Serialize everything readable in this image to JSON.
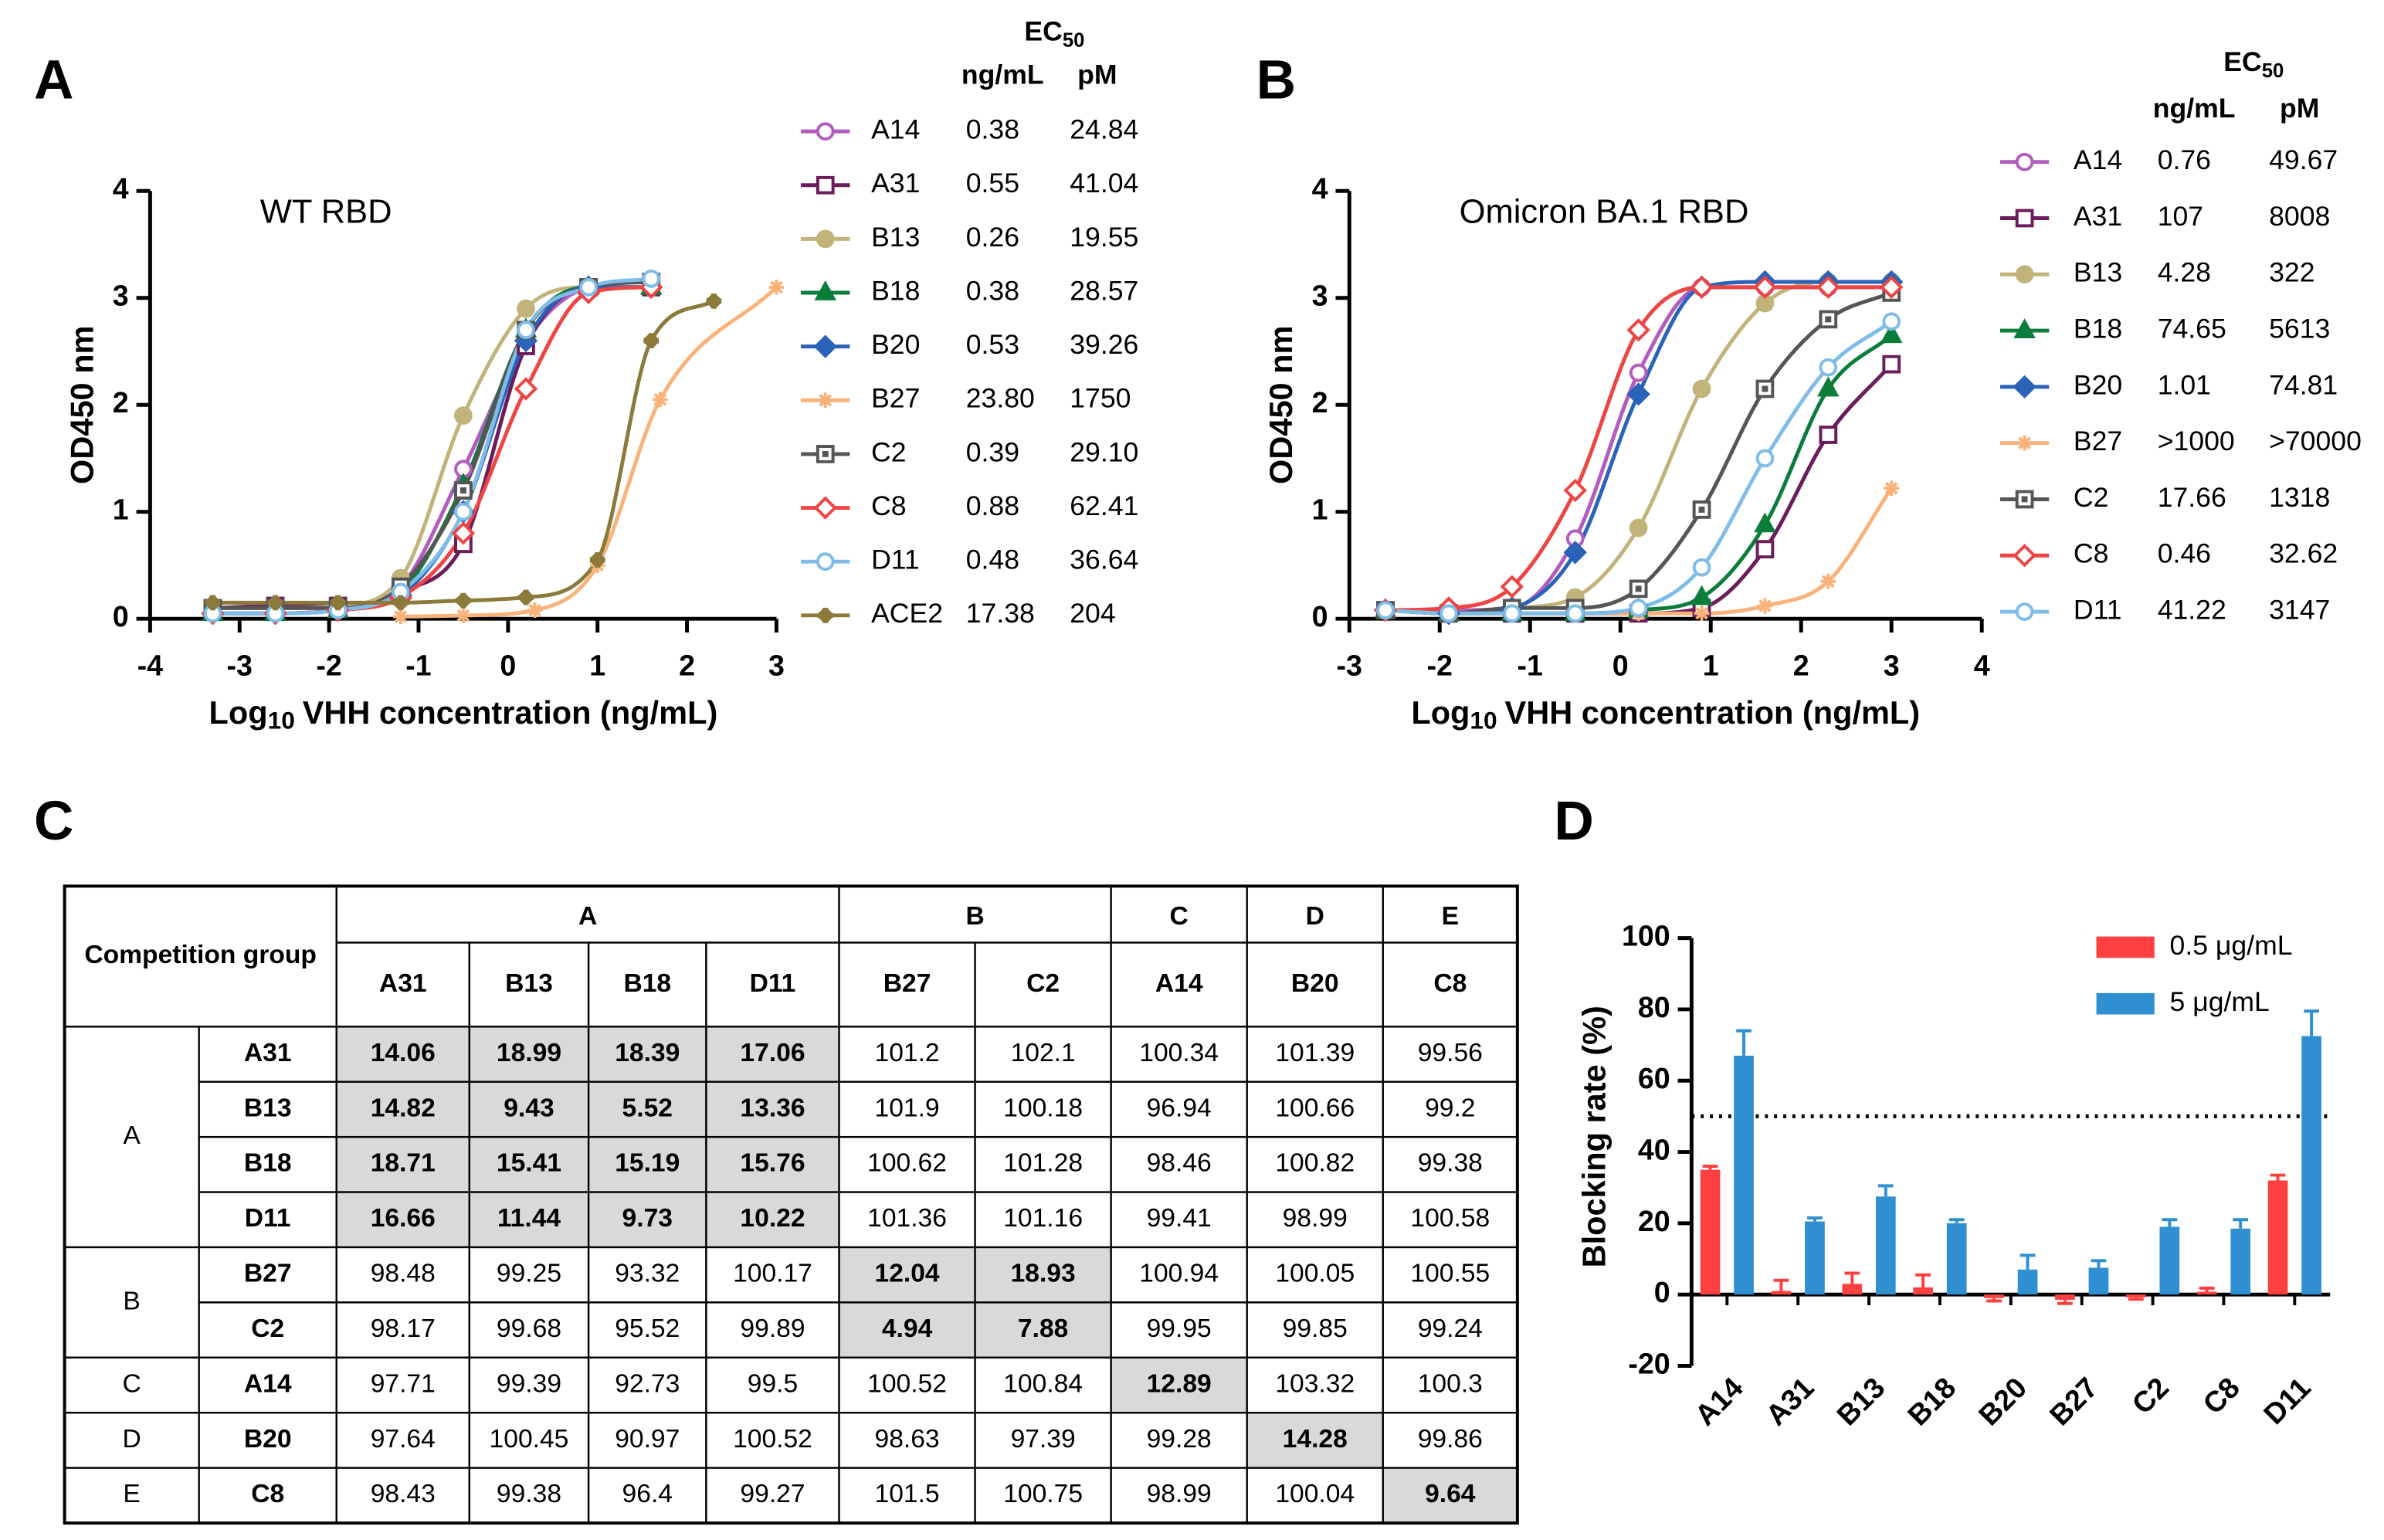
{
  "chart_data": [
    {
      "type": "line",
      "panel_label": "A",
      "title": "WT RBD",
      "ylabel": "OD450 nm",
      "xlabel": {
        "pre": "Log",
        "sub": "10",
        "post": "VHH concentration (ng/mL)"
      },
      "legend_header": {
        "ec": "EC",
        "sub": "50",
        "col1": "ng/mL",
        "col2": "pM"
      },
      "xlim": [
        -4,
        3
      ],
      "ylim": [
        0,
        4
      ],
      "xticks": [
        -4,
        -3,
        -2,
        -1,
        0,
        1,
        2,
        3
      ],
      "yticks": [
        0,
        1,
        2,
        3,
        4
      ],
      "series": [
        {
          "name": "A14",
          "color": "#b35cc0",
          "marker": "circle-open",
          "ec50_ngml": "0.38",
          "ec50_pm": "24.84",
          "x": [
            -3.3,
            -2.6,
            -1.9,
            -1.2,
            -0.5,
            0.2,
            0.9,
            1.6
          ],
          "values": [
            0.1,
            0.1,
            0.1,
            0.3,
            1.4,
            2.6,
            3.1,
            3.15
          ]
        },
        {
          "name": "A31",
          "color": "#6b1d5b",
          "marker": "square-open",
          "ec50_ngml": "0.55",
          "ec50_pm": "41.04",
          "x": [
            -3.3,
            -2.6,
            -1.9,
            -1.2,
            -0.5,
            0.2,
            0.9,
            1.6
          ],
          "values": [
            0.1,
            0.12,
            0.12,
            0.25,
            0.7,
            2.55,
            3.1,
            3.1
          ]
        },
        {
          "name": "B13",
          "color": "#c2b37a",
          "marker": "circle",
          "ec50_ngml": "0.26",
          "ec50_pm": "19.55",
          "x": [
            -3.3,
            -2.6,
            -1.9,
            -1.2,
            -0.5,
            0.2,
            0.9,
            1.6
          ],
          "values": [
            0.1,
            0.1,
            0.12,
            0.38,
            1.9,
            2.9,
            3.1,
            3.1
          ]
        },
        {
          "name": "B18",
          "color": "#0a7d3a",
          "marker": "triangle",
          "ec50_ngml": "0.38",
          "ec50_pm": "28.57",
          "x": [
            -3.3,
            -2.6,
            -1.9,
            -1.2,
            -0.5,
            0.2,
            0.9,
            1.6
          ],
          "values": [
            0.05,
            0.05,
            0.08,
            0.25,
            1.25,
            2.7,
            3.1,
            3.1
          ]
        },
        {
          "name": "B20",
          "color": "#2a63b8",
          "marker": "diamond",
          "ec50_ngml": "0.53",
          "ec50_pm": "39.26",
          "x": [
            -3.3,
            -2.6,
            -1.9,
            -1.2,
            -0.5,
            0.2,
            0.9,
            1.6
          ],
          "values": [
            0.05,
            0.05,
            0.08,
            0.22,
            1.0,
            2.6,
            3.1,
            3.1
          ]
        },
        {
          "name": "B27",
          "color": "#f9b27a",
          "marker": "star",
          "ec50_ngml": "23.80",
          "ec50_pm": "1750",
          "x": [
            -1.2,
            -0.5,
            0.3,
            1.0,
            1.7,
            3.0
          ],
          "values": [
            0.02,
            0.03,
            0.08,
            0.5,
            2.05,
            3.1
          ]
        },
        {
          "name": "C2",
          "color": "#555555",
          "marker": "square-dot",
          "ec50_ngml": "0.39",
          "ec50_pm": "29.10",
          "x": [
            -3.3,
            -2.6,
            -1.9,
            -1.2,
            -0.5,
            0.2,
            0.9,
            1.6
          ],
          "values": [
            0.1,
            0.1,
            0.1,
            0.3,
            1.2,
            2.7,
            3.1,
            3.15
          ]
        },
        {
          "name": "C8",
          "color": "#ee4444",
          "marker": "diamond-open",
          "ec50_ngml": "0.88",
          "ec50_pm": "62.41",
          "x": [
            -3.3,
            -2.6,
            -1.9,
            -1.2,
            -0.5,
            0.2,
            0.9,
            1.6
          ],
          "values": [
            0.05,
            0.05,
            0.08,
            0.2,
            0.8,
            2.15,
            3.05,
            3.1
          ]
        },
        {
          "name": "D11",
          "color": "#7fbde8",
          "marker": "circle-open",
          "ec50_ngml": "0.48",
          "ec50_pm": "36.64",
          "x": [
            -3.3,
            -2.6,
            -1.9,
            -1.2,
            -0.5,
            0.2,
            0.9,
            1.6
          ],
          "values": [
            0.05,
            0.05,
            0.08,
            0.25,
            1.0,
            2.7,
            3.1,
            3.18
          ]
        },
        {
          "name": "ACE2",
          "color": "#8b7a3a",
          "marker": "plus",
          "ec50_ngml": "17.38",
          "ec50_pm": "204",
          "x": [
            -3.3,
            -2.6,
            -1.9,
            -1.2,
            -0.5,
            0.2,
            1.0,
            1.6,
            2.3
          ],
          "values": [
            0.15,
            0.15,
            0.15,
            0.15,
            0.17,
            0.2,
            0.55,
            2.6,
            2.97
          ]
        }
      ]
    },
    {
      "type": "line",
      "panel_label": "B",
      "title": "Omicron BA.1 RBD",
      "ylabel": "OD450 nm",
      "xlabel": {
        "pre": "Log",
        "sub": "10",
        "post": "VHH concentration (ng/mL)"
      },
      "legend_header": {
        "ec": "EC",
        "sub": "50",
        "col1": "ng/mL",
        "col2": "pM"
      },
      "xlim": [
        -3,
        4
      ],
      "ylim": [
        0,
        4
      ],
      "xticks": [
        -3,
        -2,
        -1,
        0,
        1,
        2,
        3,
        4
      ],
      "yticks": [
        0,
        1,
        2,
        3,
        4
      ],
      "series": [
        {
          "name": "A14",
          "color": "#b35cc0",
          "marker": "circle-open",
          "ec50_ngml": "0.76",
          "ec50_pm": "49.67",
          "x": [
            -2.6,
            -1.9,
            -1.2,
            -0.5,
            0.2,
            0.9,
            1.6,
            2.3,
            3.0
          ],
          "values": [
            0.08,
            0.08,
            0.1,
            0.75,
            2.3,
            3.1,
            3.1,
            3.1,
            3.1
          ]
        },
        {
          "name": "A31",
          "color": "#6b1d5b",
          "marker": "square-open",
          "ec50_ngml": "107",
          "ec50_pm": "8008",
          "x": [
            -2.6,
            -1.9,
            -1.2,
            -0.5,
            0.2,
            0.9,
            1.6,
            2.3,
            3.0
          ],
          "values": [
            0.08,
            0.05,
            0.05,
            0.05,
            0.05,
            0.1,
            0.65,
            1.72,
            2.38
          ]
        },
        {
          "name": "B13",
          "color": "#c2b37a",
          "marker": "circle",
          "ec50_ngml": "4.28",
          "ec50_pm": "322",
          "x": [
            -2.6,
            -1.9,
            -1.2,
            -0.5,
            0.2,
            0.9,
            1.6,
            2.3,
            3.0
          ],
          "values": [
            0.08,
            0.05,
            0.1,
            0.2,
            0.85,
            2.15,
            2.95,
            3.15,
            3.15
          ]
        },
        {
          "name": "B18",
          "color": "#0a7d3a",
          "marker": "triangle",
          "ec50_ngml": "74.65",
          "ec50_pm": "5613",
          "x": [
            -2.6,
            -1.9,
            -1.2,
            -0.5,
            0.2,
            0.9,
            1.6,
            2.3,
            3.0
          ],
          "values": [
            0.08,
            0.05,
            0.05,
            0.05,
            0.08,
            0.2,
            0.88,
            2.15,
            2.65
          ]
        },
        {
          "name": "B20",
          "color": "#2a63b8",
          "marker": "diamond",
          "ec50_ngml": "1.01",
          "ec50_pm": "74.81",
          "x": [
            -2.6,
            -1.9,
            -1.2,
            -0.5,
            0.2,
            0.9,
            1.6,
            2.3,
            3.0
          ],
          "values": [
            0.08,
            0.05,
            0.1,
            0.62,
            2.1,
            3.1,
            3.15,
            3.15,
            3.15
          ]
        },
        {
          "name": "B27",
          "color": "#f9b27a",
          "marker": "star",
          "ec50_ngml": ">1000",
          "ec50_pm": ">70000",
          "x": [
            -2.6,
            -1.9,
            -1.2,
            -0.5,
            0.2,
            0.9,
            1.6,
            2.3,
            3.0
          ],
          "values": [
            0.08,
            0.05,
            0.05,
            0.05,
            0.05,
            0.05,
            0.12,
            0.35,
            1.22
          ]
        },
        {
          "name": "C2",
          "color": "#555555",
          "marker": "square-dot",
          "ec50_ngml": "17.66",
          "ec50_pm": "1318",
          "x": [
            -2.6,
            -1.9,
            -1.2,
            -0.5,
            0.2,
            0.9,
            1.6,
            2.3,
            3.0
          ],
          "values": [
            0.08,
            0.05,
            0.1,
            0.1,
            0.28,
            1.02,
            2.15,
            2.8,
            3.05
          ]
        },
        {
          "name": "C8",
          "color": "#ee4444",
          "marker": "diamond-open",
          "ec50_ngml": "0.46",
          "ec50_pm": "32.62",
          "x": [
            -2.6,
            -1.9,
            -1.2,
            -0.5,
            0.2,
            0.9,
            1.6,
            2.3,
            3.0
          ],
          "values": [
            0.08,
            0.1,
            0.3,
            1.2,
            2.7,
            3.1,
            3.1,
            3.1,
            3.1
          ]
        },
        {
          "name": "D11",
          "color": "#7fbde8",
          "marker": "circle-open",
          "ec50_ngml": "41.22",
          "ec50_pm": "3147",
          "x": [
            -2.6,
            -1.9,
            -1.2,
            -0.5,
            0.2,
            0.9,
            1.6,
            2.3,
            3.0
          ],
          "values": [
            0.08,
            0.05,
            0.05,
            0.05,
            0.1,
            0.48,
            1.5,
            2.35,
            2.78
          ]
        }
      ]
    },
    {
      "type": "bar",
      "panel_label": "D",
      "ylabel": "Blocking rate (%)",
      "categories": [
        "A14",
        "A31",
        "B13",
        "B18",
        "B20",
        "B27",
        "C2",
        "C8",
        "D11"
      ],
      "ylim": [
        -20,
        100
      ],
      "yticks": [
        -20,
        0,
        20,
        40,
        60,
        80,
        100
      ],
      "reference_line": 50,
      "series": [
        {
          "name": "0.5 μg/mL",
          "color": "#ff4040",
          "values": [
            35,
            1,
            3,
            2,
            -1,
            -1.5,
            -0.8,
            0.8,
            32
          ],
          "errors": [
            1,
            3,
            3,
            3.5,
            0.8,
            1,
            0.5,
            1,
            1.5
          ]
        },
        {
          "name": "5 μg/mL",
          "color": "#2f8fd0",
          "values": [
            67,
            20.5,
            27.5,
            20,
            7,
            7.5,
            19,
            18.5,
            72.5
          ],
          "errors": [
            7,
            1,
            3,
            1,
            4,
            2,
            2,
            2.5,
            7
          ]
        }
      ]
    }
  ],
  "table": {
    "panel_label": "C",
    "corner": "Competition group",
    "column_groups": [
      {
        "name": "A",
        "color": "#ff0000",
        "columns": [
          "A31",
          "B13",
          "B18",
          "D11"
        ]
      },
      {
        "name": "B",
        "color": "#33b5b5",
        "columns": [
          "B27",
          "C2"
        ]
      },
      {
        "name": "C",
        "color": "#7030a0",
        "columns": [
          "A14"
        ]
      },
      {
        "name": "D",
        "color": "#f5b800",
        "columns": [
          "B20"
        ]
      },
      {
        "name": "E",
        "color": "#000000",
        "columns": [
          "C8"
        ]
      }
    ],
    "row_groups": [
      {
        "name": "A",
        "color": "#ff0000",
        "rows": [
          {
            "name": "A31",
            "cells": [
              14.06,
              18.99,
              18.39,
              17.06,
              101.2,
              102.1,
              100.34,
              101.39,
              99.56
            ]
          },
          {
            "name": "B13",
            "cells": [
              14.82,
              9.43,
              5.52,
              13.36,
              101.9,
              100.18,
              96.94,
              100.66,
              99.2
            ]
          },
          {
            "name": "B18",
            "cells": [
              18.71,
              15.41,
              15.19,
              15.76,
              100.62,
              101.28,
              98.46,
              100.82,
              99.38
            ]
          },
          {
            "name": "D11",
            "cells": [
              16.66,
              11.44,
              9.73,
              10.22,
              101.36,
              101.16,
              99.41,
              98.99,
              100.58
            ]
          }
        ]
      },
      {
        "name": "B",
        "color": "#33b5b5",
        "rows": [
          {
            "name": "B27",
            "cells": [
              98.48,
              99.25,
              93.32,
              100.17,
              12.04,
              18.93,
              100.94,
              100.05,
              100.55
            ]
          },
          {
            "name": "C2",
            "cells": [
              98.17,
              99.68,
              95.52,
              99.89,
              4.94,
              7.88,
              99.95,
              99.85,
              99.24
            ]
          }
        ]
      },
      {
        "name": "C",
        "color": "#7030a0",
        "rows": [
          {
            "name": "A14",
            "cells": [
              97.71,
              99.39,
              92.73,
              99.5,
              100.52,
              100.84,
              12.89,
              103.32,
              100.3
            ]
          }
        ]
      },
      {
        "name": "D",
        "color": "#f5b800",
        "rows": [
          {
            "name": "B20",
            "cells": [
              97.64,
              100.45,
              90.97,
              100.52,
              98.63,
              97.39,
              99.28,
              14.28,
              99.86
            ]
          }
        ]
      },
      {
        "name": "E",
        "color": "#000000",
        "rows": [
          {
            "name": "C8",
            "cells": [
              98.43,
              99.38,
              96.4,
              99.27,
              101.5,
              100.75,
              98.99,
              100.04,
              9.64
            ]
          }
        ]
      }
    ]
  }
}
